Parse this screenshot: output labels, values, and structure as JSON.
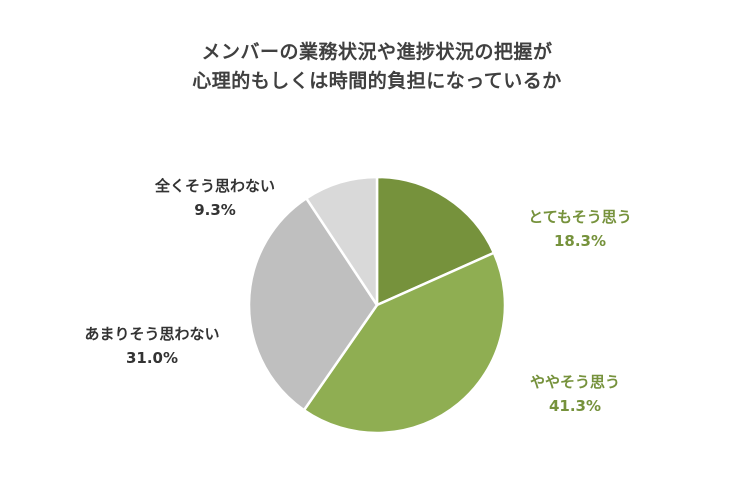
{
  "chart_data": {
    "type": "pie",
    "title_lines": [
      "メンバーの業務状況や進捗状況の把握が",
      "心理的もしくは時間的負担になっているか"
    ],
    "slices": [
      {
        "label": "とてもそう思う",
        "value_text": "18.3%",
        "value": 18.3,
        "color": "#76923c"
      },
      {
        "label": "ややそう思う",
        "value_text": "41.3%",
        "value": 41.3,
        "color": "#8fae52"
      },
      {
        "label": "あまりそう思わない",
        "value_text": "31.0%",
        "value": 31.0,
        "color": "#bfbfbf"
      },
      {
        "label": "全くそう思わない",
        "value_text": "9.3%",
        "value": 9.3,
        "color": "#d9d9d9"
      }
    ],
    "start_angle": "12 o'clock",
    "direction": "clockwise",
    "label_color_accent": "#76923c"
  }
}
